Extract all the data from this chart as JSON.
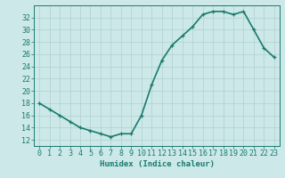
{
  "x": [
    0,
    1,
    2,
    3,
    4,
    5,
    6,
    7,
    8,
    9,
    10,
    11,
    12,
    13,
    14,
    15,
    16,
    17,
    18,
    19,
    20,
    21,
    22,
    23
  ],
  "y": [
    18,
    17,
    16,
    15,
    14,
    13.5,
    13,
    12.5,
    13,
    13,
    16,
    21,
    25,
    27.5,
    29,
    30.5,
    32.5,
    33,
    33,
    32.5,
    33,
    30,
    27,
    25.5
  ],
  "line_color": "#1a7a6e",
  "marker": "+",
  "marker_size": 3,
  "bg_color": "#cce8e8",
  "grid_color": "#b0d0d0",
  "axis_color": "#1a7a6e",
  "xlabel": "Humidex (Indice chaleur)",
  "ylim": [
    11,
    34
  ],
  "xlim": [
    -0.5,
    23.5
  ],
  "yticks": [
    12,
    14,
    16,
    18,
    20,
    22,
    24,
    26,
    28,
    30,
    32
  ],
  "xticks": [
    0,
    1,
    2,
    3,
    4,
    5,
    6,
    7,
    8,
    9,
    10,
    11,
    12,
    13,
    14,
    15,
    16,
    17,
    18,
    19,
    20,
    21,
    22,
    23
  ],
  "xlabel_fontsize": 6.5,
  "tick_fontsize": 6,
  "line_width": 1.2
}
